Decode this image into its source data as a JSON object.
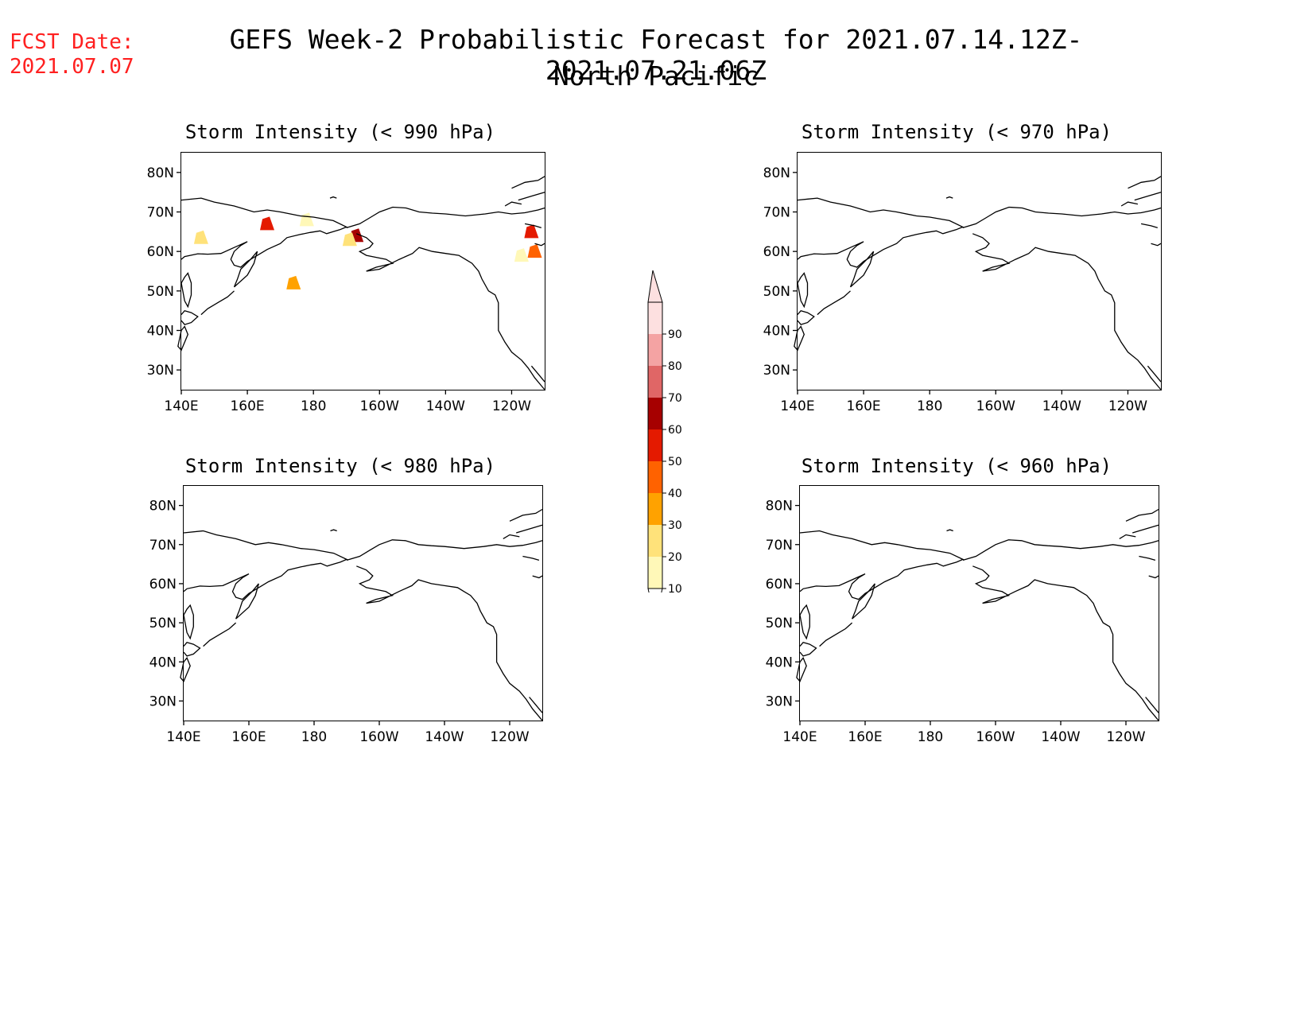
{
  "header": {
    "fcst_label": "FCST Date:",
    "fcst_date": "2021.07.07",
    "title_line1": "GEFS Week-2 Probabilistic Forecast for 2021.07.14.12Z-2021.07.21.06Z",
    "title_line2": "North Pacific"
  },
  "axes": {
    "lon_ticks": [
      {
        "lon": 140,
        "label": "140E"
      },
      {
        "lon": 160,
        "label": "160E"
      },
      {
        "lon": 180,
        "label": "180"
      },
      {
        "lon": 200,
        "label": "160W"
      },
      {
        "lon": 220,
        "label": "140W"
      },
      {
        "lon": 240,
        "label": "120W"
      }
    ],
    "lat_ticks": [
      {
        "lat": 30,
        "label": "30N"
      },
      {
        "lat": 40,
        "label": "40N"
      },
      {
        "lat": 50,
        "label": "50N"
      },
      {
        "lat": 60,
        "label": "60N"
      },
      {
        "lat": 70,
        "label": "70N"
      },
      {
        "lat": 80,
        "label": "80N"
      }
    ],
    "lon_range": [
      140,
      250
    ],
    "lat_range": [
      25,
      85
    ]
  },
  "panels": [
    {
      "title": "Storm Intensity (< 990 hPa)",
      "threshold_hpa": 990,
      "has_data": true
    },
    {
      "title": "Storm Intensity (< 970 hPa)",
      "threshold_hpa": 970,
      "has_data": false
    },
    {
      "title": "Storm Intensity (< 980 hPa)",
      "threshold_hpa": 980,
      "has_data": false
    },
    {
      "title": "Storm Intensity (< 960 hPa)",
      "threshold_hpa": 960,
      "has_data": false
    }
  ],
  "colorbar": {
    "levels": [
      "10",
      "20",
      "30",
      "40",
      "50",
      "60",
      "70",
      "80",
      "90"
    ],
    "colors": [
      "#fff8b8",
      "#ffe27a",
      "#ffa200",
      "#ff6200",
      "#e41a00",
      "#a60000",
      "#e06666",
      "#f4a3a3",
      "#fde0e0"
    ]
  },
  "chart_data": {
    "type": "heatmap",
    "units": "probability (%)",
    "cells_990hpa": [
      {
        "lon": 146,
        "lat": 63.5,
        "value": 20
      },
      {
        "lon": 166,
        "lat": 67,
        "value": 50
      },
      {
        "lon": 178,
        "lat": 68,
        "value": 10
      },
      {
        "lon": 174,
        "lat": 52,
        "value": 30
      },
      {
        "lon": 193,
        "lat": 64,
        "value": 60
      },
      {
        "lon": 191,
        "lat": 63,
        "value": 20
      },
      {
        "lon": 246,
        "lat": 65,
        "value": 50
      },
      {
        "lon": 247,
        "lat": 60,
        "value": 40
      },
      {
        "lon": 243,
        "lat": 59,
        "value": 10
      }
    ]
  }
}
